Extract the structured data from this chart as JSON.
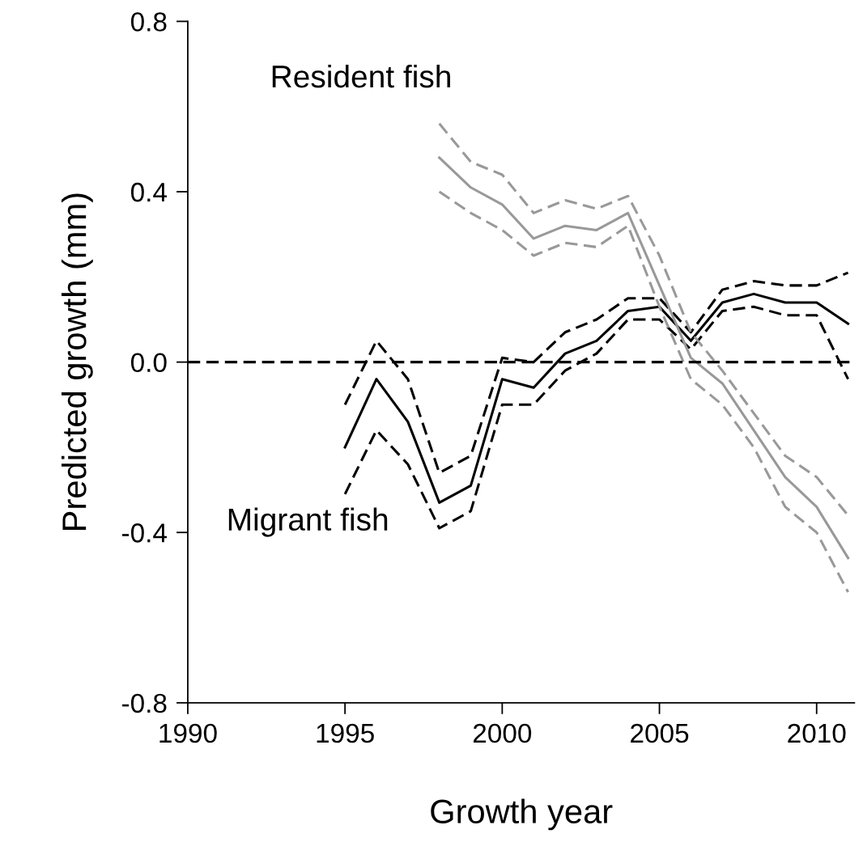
{
  "chart_data": {
    "type": "line",
    "xlabel": "Growth year",
    "ylabel": "Predicted growth (mm)",
    "xlim": [
      1990,
      2011.2
    ],
    "xticks": [
      1990,
      1995,
      2000,
      2005,
      2010
    ],
    "ylim": [
      -0.8,
      0.8
    ],
    "yticks": [
      {
        "value": 0.8,
        "label": "0.8"
      },
      {
        "value": 0.4,
        "label": "0.4"
      },
      {
        "value": 0,
        "label": "0.0"
      },
      {
        "value": -0.4,
        "label": "-0.4"
      },
      {
        "value": -0.8,
        "label": "-0.8"
      }
    ],
    "grid": false,
    "legend": false,
    "marker": "none",
    "ref_lines": [
      {
        "axis": "y",
        "value": 0,
        "color": "#000000",
        "line_style": "dashed"
      }
    ],
    "annotations": [
      "Resident fish",
      "Migrant fish"
    ],
    "series": [
      {
        "color": "#000000",
        "line_style": "solid",
        "x": [
          1995,
          1996,
          1997,
          1998,
          1999,
          2000,
          2001,
          2002,
          2003,
          2004,
          2005,
          2006,
          2007,
          2008,
          2009,
          2010,
          2011
        ],
        "values": [
          -0.2,
          -0.04,
          -0.14,
          -0.33,
          -0.29,
          -0.04,
          -0.06,
          0.02,
          0.05,
          0.12,
          0.13,
          0.05,
          0.14,
          0.16,
          0.14,
          0.14,
          0.09
        ]
      },
      {
        "color": "#000000",
        "line_style": "dashed",
        "x": [
          1995,
          1996,
          1997,
          1998,
          1999,
          2000,
          2001,
          2002,
          2003,
          2004,
          2005,
          2006,
          2007,
          2008,
          2009,
          2010,
          2011
        ],
        "values": [
          -0.1,
          0.05,
          -0.04,
          -0.26,
          -0.22,
          0.01,
          0.0,
          0.07,
          0.1,
          0.15,
          0.15,
          0.07,
          0.17,
          0.19,
          0.18,
          0.18,
          0.21
        ]
      },
      {
        "color": "#000000",
        "line_style": "dashed",
        "x": [
          1995,
          1996,
          1997,
          1998,
          1999,
          2000,
          2001,
          2002,
          2003,
          2004,
          2005,
          2006,
          2007,
          2008,
          2009,
          2010,
          2011
        ],
        "values": [
          -0.31,
          -0.16,
          -0.24,
          -0.39,
          -0.35,
          -0.1,
          -0.1,
          -0.02,
          0.02,
          0.1,
          0.1,
          0.03,
          0.12,
          0.13,
          0.11,
          0.11,
          -0.04
        ]
      },
      {
        "color": "#999999",
        "line_style": "solid",
        "x": [
          1998,
          1999,
          2000,
          2001,
          2002,
          2003,
          2004,
          2005,
          2006,
          2007,
          2008,
          2009,
          2010,
          2011
        ],
        "values": [
          0.48,
          0.41,
          0.37,
          0.29,
          0.32,
          0.31,
          0.35,
          0.18,
          0.01,
          -0.05,
          -0.16,
          -0.27,
          -0.34,
          -0.46
        ]
      },
      {
        "color": "#999999",
        "line_style": "dashed",
        "x": [
          1998,
          1999,
          2000,
          2001,
          2002,
          2003,
          2004,
          2005,
          2006,
          2007,
          2008,
          2009,
          2010,
          2011
        ],
        "values": [
          0.56,
          0.47,
          0.44,
          0.35,
          0.38,
          0.36,
          0.39,
          0.25,
          0.07,
          -0.02,
          -0.12,
          -0.22,
          -0.27,
          -0.36
        ]
      },
      {
        "color": "#999999",
        "line_style": "dashed",
        "x": [
          1998,
          1999,
          2000,
          2001,
          2002,
          2003,
          2004,
          2005,
          2006,
          2007,
          2008,
          2009,
          2010,
          2011
        ],
        "values": [
          0.4,
          0.35,
          0.31,
          0.25,
          0.28,
          0.27,
          0.32,
          0.13,
          -0.04,
          -0.1,
          -0.2,
          -0.34,
          -0.4,
          -0.54
        ]
      }
    ]
  }
}
